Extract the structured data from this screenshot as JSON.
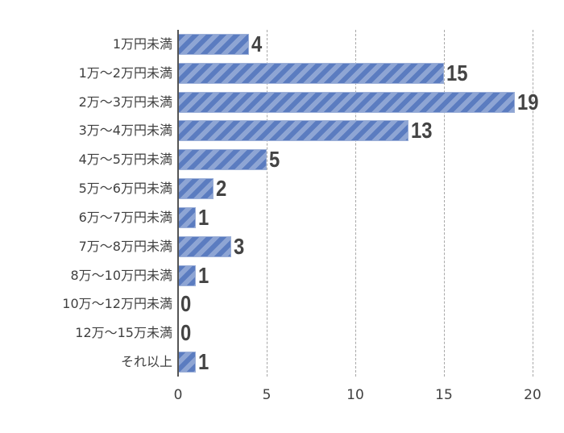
{
  "chart_data": {
    "type": "bar",
    "orientation": "horizontal",
    "title": "",
    "xlabel": "",
    "ylabel": "",
    "categories": [
      "1万円未満",
      "1万～2万円未満",
      "2万～3万円未満",
      "3万～4万円未満",
      "4万～5万円未満",
      "5万～6万円未満",
      "6万～7万円未満",
      "7万～8万円未満",
      "8万～10万円未満",
      "10万～12万円未満",
      "12万～15万未満",
      "それ以上"
    ],
    "values": [
      4,
      15,
      19,
      13,
      5,
      2,
      1,
      3,
      1,
      0,
      0,
      1
    ],
    "value_labels": [
      "4",
      "15",
      "19",
      "13",
      "5",
      "2",
      "1",
      "3",
      "1",
      "0",
      "0",
      "1"
    ],
    "xlim": [
      0,
      20
    ],
    "xticks": [
      0,
      5,
      10,
      15,
      20
    ],
    "xtick_labels": [
      "0",
      "5",
      "10",
      "15",
      "20"
    ],
    "grid": "vertical dashed",
    "legend": null,
    "colors": {
      "bar_dark": "#5b7cc0",
      "bar_light": "#8ea5d4",
      "label": "#444444"
    }
  }
}
